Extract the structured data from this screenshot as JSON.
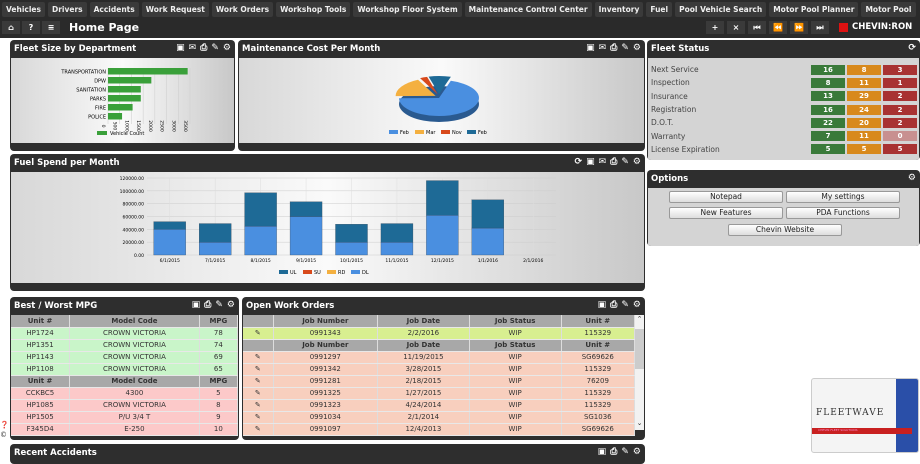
{
  "nav": [
    "Vehicles",
    "Drivers",
    "Accidents",
    "Work Request",
    "Work Orders",
    "Workshop Tools",
    "Workshop Floor System",
    "Maintenance Control Center",
    "Inventory",
    "Fuel",
    "Pool Vehicle Search",
    "Motor Pool Planner",
    "Motor Pool"
  ],
  "toolbar": {
    "home": "⌂",
    "help": "?",
    "menu": "≡",
    "title": "Home Page",
    "add": "+",
    "close": "×",
    "first": "⏮",
    "prev": "⏪",
    "next": "⏩",
    "last": "⏭",
    "user": "CHEVIN:RON"
  },
  "fleet_size": {
    "title": "Fleet Size by Department"
  },
  "maintenance": {
    "title": "Maintenance Cost Per Month"
  },
  "fuel": {
    "title": "Fuel Spend per Month"
  },
  "fleet_status": {
    "title": "Fleet Status",
    "rows": [
      {
        "label": "Next Service",
        "green": "16",
        "orange": "8",
        "red": "3"
      },
      {
        "label": "Inspection",
        "green": "8",
        "orange": "11",
        "red": "1"
      },
      {
        "label": "Insurance",
        "green": "13",
        "orange": "29",
        "red": "2"
      },
      {
        "label": "Registration",
        "green": "16",
        "orange": "24",
        "red": "2"
      },
      {
        "label": "D.O.T.",
        "green": "22",
        "orange": "20",
        "red": "2"
      },
      {
        "label": "Warranty",
        "green": "7",
        "orange": "11",
        "red": "0"
      },
      {
        "label": "License Expiration",
        "green": "5",
        "orange": "5",
        "red": "5"
      }
    ],
    "colors": {
      "green": "#3a7a3a",
      "orange": "#d8891c",
      "red": "#a83232"
    }
  },
  "options": {
    "title": "Options",
    "buttons": [
      "Notepad",
      "My settings",
      "New Features",
      "PDA Functions",
      "Chevin Website"
    ]
  },
  "mpg": {
    "title": "Best / Worst MPG",
    "headers": [
      "Unit #",
      "Model Code",
      "MPG"
    ],
    "best": [
      [
        "HP1724",
        "CROWN VICTORIA",
        "78"
      ],
      [
        "HP1351",
        "CROWN VICTORIA",
        "74"
      ],
      [
        "HP1143",
        "CROWN VICTORIA",
        "69"
      ],
      [
        "HP1108",
        "CROWN VICTORIA",
        "65"
      ]
    ],
    "worst": [
      [
        "CCKBC5",
        "4300",
        "5"
      ],
      [
        "HP1085",
        "CROWN VICTORIA",
        "8"
      ],
      [
        "HP1505",
        "P/U 3/4 T",
        "9"
      ],
      [
        "F345D4",
        "E-250",
        "10"
      ]
    ]
  },
  "work_orders": {
    "title": "Open Work Orders",
    "headers": [
      "",
      "Job Number",
      "Job Date",
      "Job Status",
      "Unit #"
    ],
    "highlight": [
      "0991343",
      "2/2/2016",
      "WIP",
      "115329"
    ],
    "rows": [
      [
        "0991297",
        "11/19/2015",
        "WIP",
        "SG69626"
      ],
      [
        "0991342",
        "3/28/2015",
        "WIP",
        "115329"
      ],
      [
        "0991281",
        "2/18/2015",
        "WIP",
        "76209"
      ],
      [
        "0991325",
        "1/27/2015",
        "WIP",
        "115329"
      ],
      [
        "0991323",
        "4/24/2014",
        "WIP",
        "115329"
      ],
      [
        "0991034",
        "2/1/2014",
        "WIP",
        "SG1036"
      ],
      [
        "0991097",
        "12/4/2013",
        "WIP",
        "SG69626"
      ]
    ]
  },
  "recent_accidents": {
    "title": "Recent Accidents"
  },
  "logo": {
    "text": "FLEETWAVE",
    "sub": "CHEVIN FLEET SOLUTIONS"
  },
  "chart_data": [
    {
      "type": "bar",
      "orientation": "horizontal",
      "categories": [
        "TRANSPORTATION",
        "DPW",
        "SANITATION",
        "PARKS",
        "FIRE",
        "POLICE"
      ],
      "values": [
        3400,
        1850,
        1400,
        1400,
        1050,
        600
      ],
      "xlim": [
        0,
        3500
      ],
      "xticks": [
        "0",
        "500",
        "1000",
        "1500",
        "2000",
        "2500",
        "3000",
        "3500"
      ],
      "series": [
        {
          "name": "Vehicle Count",
          "color": "#3aa03a"
        }
      ],
      "legend": "bottom",
      "grid": true
    },
    {
      "type": "pie",
      "labels": [
        "Feb",
        "Mar",
        "Nov",
        "Feb"
      ],
      "values": [
        70,
        18,
        3,
        9
      ],
      "colors": [
        "#4a8fe0",
        "#f4b040",
        "#d84a1c",
        "#1e6a96"
      ],
      "legend": "bottom"
    },
    {
      "type": "bar",
      "stacked": true,
      "categories": [
        "6/1/2015",
        "7/1/2015",
        "8/1/2015",
        "9/1/2015",
        "10/1/2015",
        "11/1/2015",
        "12/1/2015",
        "1/1/2016",
        "2/1/2016"
      ],
      "series": [
        {
          "name": "UL",
          "color": "#1e6a96",
          "values": [
            12000,
            29000,
            52000,
            23000,
            28000,
            29000,
            54000,
            44000,
            0
          ]
        },
        {
          "name": "SU",
          "color": "#d84a1c",
          "values": [
            0,
            0,
            0,
            0,
            0,
            0,
            0,
            0,
            0
          ]
        },
        {
          "name": "RD",
          "color": "#f4b040",
          "values": [
            0,
            0,
            0,
            0,
            0,
            0,
            0,
            0,
            0
          ]
        },
        {
          "name": "DL",
          "color": "#4a8fe0",
          "values": [
            40000,
            20000,
            45000,
            60000,
            20000,
            20000,
            62000,
            42000,
            0
          ]
        }
      ],
      "ylim": [
        0,
        120000
      ],
      "yticks": [
        "0.00",
        "20000.00",
        "40000.00",
        "60000.00",
        "80000.00",
        "100000.00",
        "120000.00"
      ],
      "legend": "bottom",
      "grid": true
    }
  ]
}
